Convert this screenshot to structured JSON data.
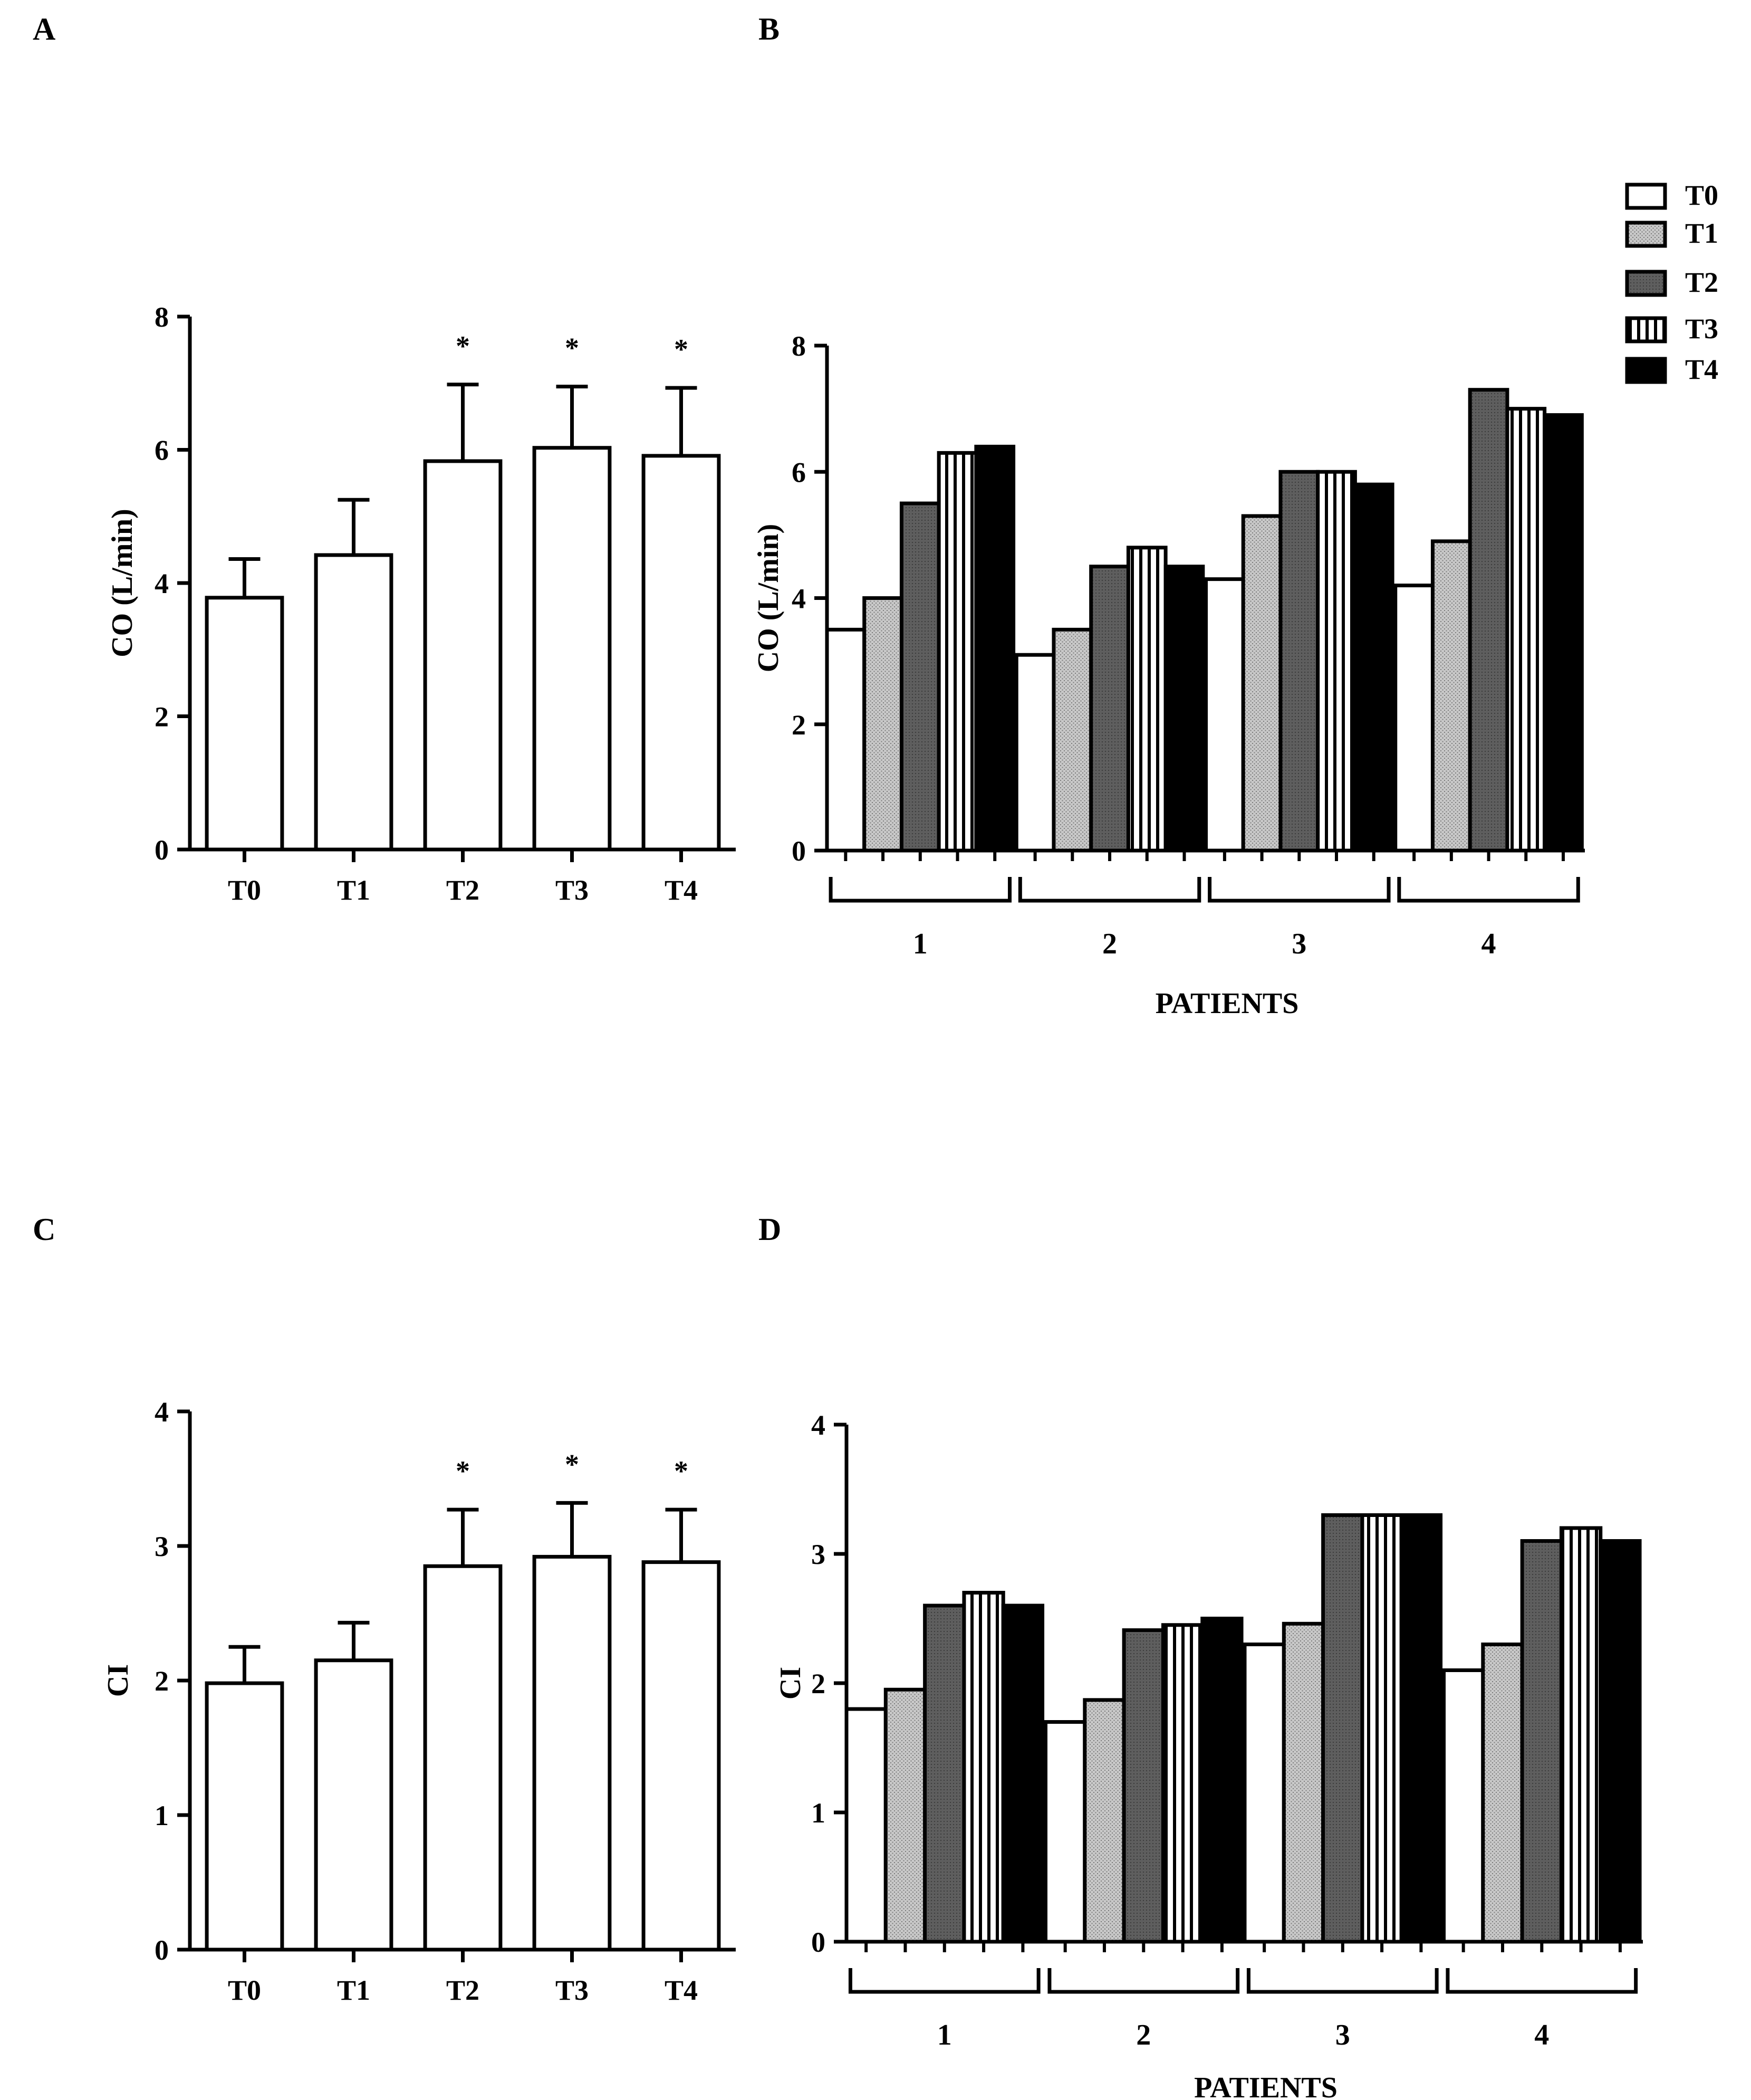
{
  "legend": {
    "entries": [
      "T0",
      "T1",
      "T2",
      "T3",
      "T4"
    ],
    "placement": "top-right",
    "styles": [
      "white",
      "stipple",
      "dark-gray",
      "vertical-stripes",
      "black"
    ]
  },
  "colors": {
    "white_fill": "#ffffff",
    "stipple_fill": "#b4b4b4",
    "dark_fill": "#5e5e5e",
    "black_fill": "#000000",
    "stroke": "#000000"
  },
  "chart_data": [
    {
      "panel": "A",
      "type": "bar",
      "categories": [
        "T0",
        "T1",
        "T2",
        "T3",
        "T4"
      ],
      "values": [
        3.78,
        4.42,
        5.83,
        6.03,
        5.91
      ],
      "error": [
        0.58,
        0.83,
        1.15,
        0.92,
        1.02
      ],
      "annotations": [
        "",
        "",
        "*",
        "*",
        "*"
      ],
      "title": "",
      "xlabel": "",
      "ylabel": "CO (L/min)",
      "ylim": [
        0,
        8
      ],
      "yticks": [
        0,
        2,
        4,
        6,
        8
      ],
      "grid": false
    },
    {
      "panel": "B",
      "type": "bar",
      "categories": [
        "1",
        "2",
        "3",
        "4"
      ],
      "series": [
        {
          "name": "T0",
          "values": [
            3.5,
            3.1,
            4.3,
            4.2
          ]
        },
        {
          "name": "T1",
          "values": [
            4.0,
            3.5,
            5.3,
            4.9
          ]
        },
        {
          "name": "T2",
          "values": [
            5.5,
            4.5,
            6.0,
            7.3
          ]
        },
        {
          "name": "T3",
          "values": [
            6.3,
            4.8,
            6.0,
            7.0
          ]
        },
        {
          "name": "T4",
          "values": [
            6.4,
            4.5,
            5.8,
            6.9
          ]
        }
      ],
      "title": "",
      "xlabel": "PATIENTS",
      "ylabel": "CO (L/min)",
      "ylim": [
        0,
        8
      ],
      "yticks": [
        0,
        2,
        4,
        6,
        8
      ],
      "grid": false
    },
    {
      "panel": "C",
      "type": "bar",
      "categories": [
        "T0",
        "T1",
        "T2",
        "T3",
        "T4"
      ],
      "values": [
        1.98,
        2.15,
        2.85,
        2.92,
        2.88
      ],
      "error": [
        0.27,
        0.28,
        0.42,
        0.4,
        0.39
      ],
      "annotations": [
        "",
        "",
        "*",
        "*",
        "*"
      ],
      "title": "",
      "xlabel": "",
      "ylabel": "CI",
      "ylim": [
        0,
        4
      ],
      "yticks": [
        0,
        1,
        2,
        3,
        4
      ],
      "grid": false
    },
    {
      "panel": "D",
      "type": "bar",
      "categories": [
        "1",
        "2",
        "3",
        "4"
      ],
      "series": [
        {
          "name": "T0",
          "values": [
            1.8,
            1.7,
            2.3,
            2.1
          ]
        },
        {
          "name": "T1",
          "values": [
            1.95,
            1.87,
            2.46,
            2.3
          ]
        },
        {
          "name": "T2",
          "values": [
            2.6,
            2.41,
            3.3,
            3.1
          ]
        },
        {
          "name": "T3",
          "values": [
            2.7,
            2.45,
            3.3,
            3.2
          ]
        },
        {
          "name": "T4",
          "values": [
            2.6,
            2.5,
            3.3,
            3.1
          ]
        }
      ],
      "title": "",
      "xlabel": "PATIENTS",
      "ylabel": "CI",
      "ylim": [
        0,
        4
      ],
      "yticks": [
        0,
        1,
        2,
        3,
        4
      ],
      "grid": false
    }
  ]
}
